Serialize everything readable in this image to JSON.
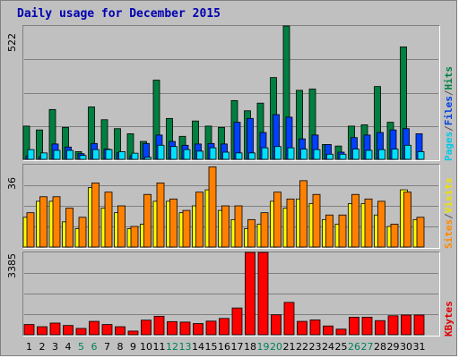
{
  "title": "Daily usage for December 2015",
  "colors": {
    "hits": "#008040",
    "files": "#0040ff",
    "pages": "#00e0ff",
    "visits": "#ffff00",
    "sites": "#ff8000",
    "kbytes": "#ff0000",
    "weekend_label": "#00805a"
  },
  "legend": {
    "top": {
      "pages": "Pages",
      "sep": "/",
      "files": "Files",
      "sep2": "/",
      "hits": "Hits"
    },
    "middle": {
      "sites": "Sites",
      "sep": "/",
      "visits": "Visits"
    },
    "bottom": {
      "kbytes": "KBytes"
    }
  },
  "chart_data": [
    {
      "type": "bar",
      "name": "hits-files-pages",
      "ymax_label": "522",
      "ylim": [
        0,
        522
      ],
      "categories": [
        "1",
        "2",
        "3",
        "4",
        "5",
        "6",
        "7",
        "8",
        "9",
        "10",
        "11",
        "12",
        "13",
        "14",
        "15",
        "16",
        "17",
        "18",
        "19",
        "20",
        "21",
        "22",
        "23",
        "24",
        "25",
        "26",
        "27",
        "28",
        "29",
        "30",
        "31"
      ],
      "series": [
        {
          "name": "Hits",
          "values": [
            130,
            115,
            195,
            125,
            30,
            205,
            155,
            120,
            100,
            70,
            310,
            160,
            90,
            150,
            130,
            125,
            230,
            190,
            220,
            320,
            522,
            270,
            275,
            58,
            52,
            130,
            135,
            285,
            145,
            440,
            0
          ]
        },
        {
          "name": "Files",
          "values": [
            12,
            10,
            60,
            48,
            22,
            62,
            40,
            26,
            14,
            62,
            95,
            70,
            55,
            60,
            62,
            60,
            145,
            160,
            105,
            175,
            165,
            80,
            95,
            58,
            28,
            85,
            95,
            105,
            115,
            120,
            100
          ]
        },
        {
          "name": "Pages",
          "values": [
            38,
            25,
            35,
            35,
            15,
            38,
            38,
            30,
            24,
            8,
            55,
            50,
            38,
            32,
            45,
            28,
            25,
            25,
            45,
            50,
            45,
            40,
            38,
            20,
            20,
            40,
            35,
            38,
            40,
            55,
            30
          ]
        }
      ]
    },
    {
      "type": "bar",
      "name": "visits-sites",
      "ymax_label": "36",
      "ylim": [
        0,
        36
      ],
      "categories": [
        "1",
        "2",
        "3",
        "4",
        "5",
        "6",
        "7",
        "8",
        "9",
        "10",
        "11",
        "12",
        "13",
        "14",
        "15",
        "16",
        "17",
        "18",
        "19",
        "20",
        "21",
        "22",
        "23",
        "24",
        "25",
        "26",
        "27",
        "28",
        "29",
        "30",
        "31"
      ],
      "series": [
        {
          "name": "Visits",
          "values": [
            13,
            20,
            20,
            11,
            8,
            26,
            17,
            15,
            8,
            10,
            20,
            20,
            15,
            18,
            25,
            16,
            12,
            8,
            10,
            20,
            17,
            21,
            19,
            12,
            10,
            19,
            19,
            14,
            9,
            25,
            12
          ]
        },
        {
          "name": "Sites",
          "values": [
            15,
            22,
            22,
            17,
            13,
            28,
            24,
            18,
            9,
            23,
            28,
            21,
            16,
            24,
            35,
            18,
            18,
            12,
            15,
            24,
            21,
            29,
            23,
            14,
            14,
            23,
            21,
            20,
            10,
            24,
            13
          ]
        }
      ]
    },
    {
      "type": "bar",
      "name": "kbytes",
      "ymax_label": "3385",
      "ylim": [
        0,
        3385
      ],
      "categories": [
        "1",
        "2",
        "3",
        "4",
        "5",
        "6",
        "7",
        "8",
        "9",
        "10",
        "11",
        "12",
        "13",
        "14",
        "15",
        "16",
        "17",
        "18",
        "19",
        "20",
        "21",
        "22",
        "23",
        "24",
        "25",
        "26",
        "27",
        "28",
        "29",
        "30",
        "31"
      ],
      "series": [
        {
          "name": "KBytes",
          "values": [
            420,
            330,
            480,
            380,
            260,
            550,
            420,
            330,
            150,
            600,
            760,
            540,
            520,
            460,
            560,
            670,
            1100,
            3385,
            3385,
            820,
            1330,
            550,
            610,
            360,
            230,
            720,
            720,
            580,
            780,
            810,
            810
          ]
        }
      ]
    }
  ],
  "days": [
    {
      "label": "1",
      "weekend": false
    },
    {
      "label": "2",
      "weekend": false
    },
    {
      "label": "3",
      "weekend": false
    },
    {
      "label": "4",
      "weekend": false
    },
    {
      "label": "5",
      "weekend": true
    },
    {
      "label": "6",
      "weekend": true
    },
    {
      "label": "7",
      "weekend": false
    },
    {
      "label": "8",
      "weekend": false
    },
    {
      "label": "9",
      "weekend": false
    },
    {
      "label": "10",
      "weekend": false
    },
    {
      "label": "11",
      "weekend": false
    },
    {
      "label": "12",
      "weekend": true
    },
    {
      "label": "13",
      "weekend": true
    },
    {
      "label": "14",
      "weekend": false
    },
    {
      "label": "15",
      "weekend": false
    },
    {
      "label": "16",
      "weekend": false
    },
    {
      "label": "17",
      "weekend": false
    },
    {
      "label": "18",
      "weekend": false
    },
    {
      "label": "19",
      "weekend": true
    },
    {
      "label": "20",
      "weekend": true
    },
    {
      "label": "21",
      "weekend": false
    },
    {
      "label": "22",
      "weekend": false
    },
    {
      "label": "23",
      "weekend": false
    },
    {
      "label": "24",
      "weekend": false
    },
    {
      "label": "25",
      "weekend": false
    },
    {
      "label": "26",
      "weekend": true
    },
    {
      "label": "27",
      "weekend": true
    },
    {
      "label": "28",
      "weekend": false
    },
    {
      "label": "29",
      "weekend": false
    },
    {
      "label": "30",
      "weekend": false
    },
    {
      "label": "31",
      "weekend": false
    }
  ]
}
